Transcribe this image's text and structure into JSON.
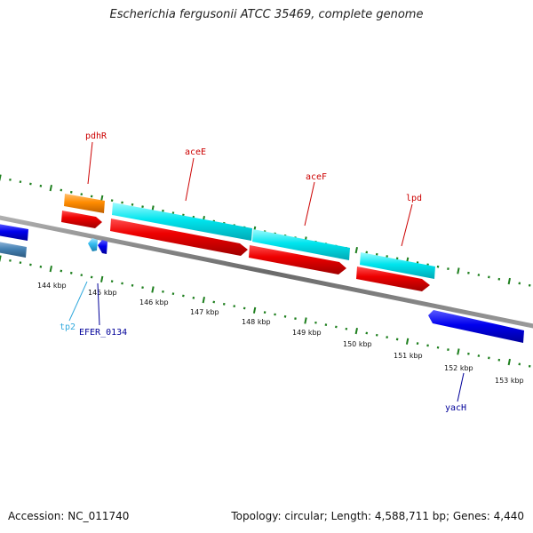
{
  "title": "Escherichia fergusonii ATCC 35469, complete genome",
  "footer": {
    "accession": "Accession: NC_011740",
    "stats": "Topology: circular; Length: 4,588,711 bp; Genes: 4,440"
  },
  "scale_labels": [
    "144 kbp",
    "145 kbp",
    "146 kbp",
    "147 kbp",
    "148 kbp",
    "149 kbp",
    "150 kbp",
    "151 kbp",
    "152 kbp",
    "153 kbp"
  ],
  "gene_labels": [
    {
      "id": "pdhR",
      "text": "pdhR",
      "color": "#cc0000"
    },
    {
      "id": "aceE",
      "text": "aceE",
      "color": "#cc0000"
    },
    {
      "id": "aceF",
      "text": "aceF",
      "color": "#cc0000"
    },
    {
      "id": "lpd",
      "text": "lpd",
      "color": "#cc0000"
    },
    {
      "id": "tp2",
      "text": "tp2",
      "color": "#33aadd"
    },
    {
      "id": "EFER_0134",
      "text": "EFER_0134",
      "color": "#000099"
    },
    {
      "id": "yacH",
      "text": "yacH",
      "color": "#000099"
    }
  ],
  "colors": {
    "backbone": "#808080",
    "cds": "#ee0000",
    "rna_orange": "#ff8c00",
    "cyan": "#00e5ee",
    "blue": "#0000ee",
    "steelblue": "#4682b4",
    "tick_green": "#1e7f1e"
  }
}
